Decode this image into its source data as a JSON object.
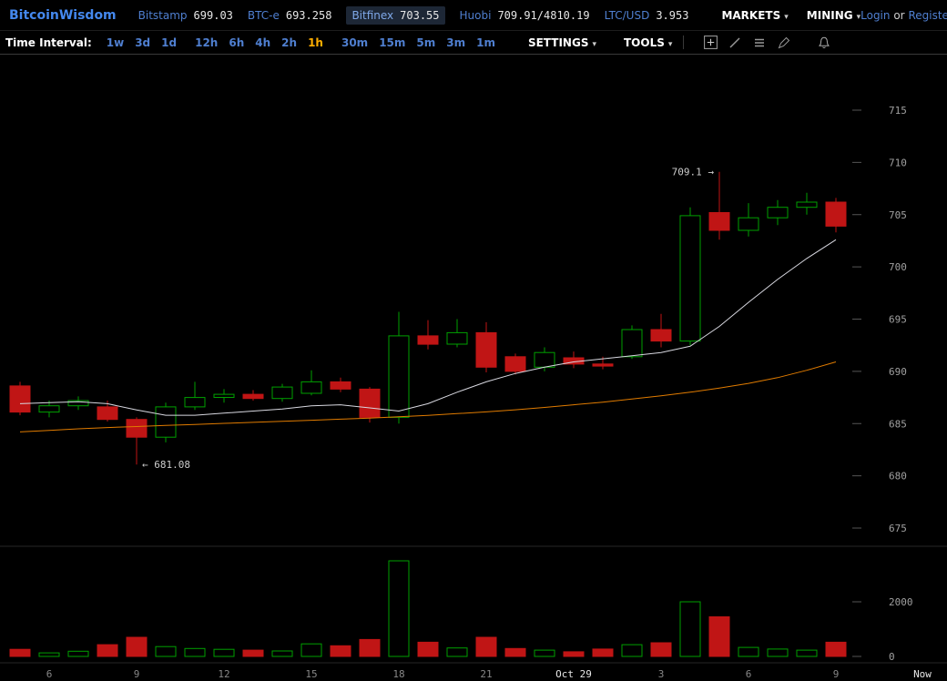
{
  "header": {
    "logo": "BitcoinWisdom",
    "markets": [
      {
        "name": "Bitstamp",
        "price": "699.03",
        "selected": false
      },
      {
        "name": "BTC-e",
        "price": "693.258",
        "selected": false
      },
      {
        "name": "Bitfinex",
        "price": "703.55",
        "selected": true
      },
      {
        "name": "Huobi",
        "price": "709.91/4810.19",
        "selected": false
      },
      {
        "name": "LTC/USD",
        "price": "3.953",
        "selected": false
      }
    ],
    "menus": [
      {
        "label": "MARKETS"
      },
      {
        "label": "MINING"
      }
    ],
    "auth": {
      "login": "Login",
      "or": "or",
      "register": "Register"
    }
  },
  "glyphs": {
    "caret": "▾"
  },
  "toolbar": {
    "time_interval_label": "Time Interval:",
    "intervals": [
      {
        "label": "1w",
        "selected": false
      },
      {
        "label": "3d",
        "selected": false
      },
      {
        "label": "1d",
        "selected": false
      },
      {
        "label": "12h",
        "selected": false
      },
      {
        "label": "6h",
        "selected": false
      },
      {
        "label": "4h",
        "selected": false
      },
      {
        "label": "2h",
        "selected": false
      },
      {
        "label": "1h",
        "selected": true
      },
      {
        "label": "30m",
        "selected": false
      },
      {
        "label": "15m",
        "selected": false
      },
      {
        "label": "5m",
        "selected": false
      },
      {
        "label": "3m",
        "selected": false
      },
      {
        "label": "1m",
        "selected": false
      }
    ],
    "menus": [
      {
        "label": "SETTINGS"
      },
      {
        "label": "TOOLS"
      }
    ],
    "icon_buttons": [
      "crosshair-icon",
      "trendline-icon",
      "indicators-icon",
      "brush-icon",
      "bell-icon"
    ]
  },
  "chart_data": {
    "type": "candlestick+volume",
    "market": "Bitfinex BTC/USD",
    "interval": "1h",
    "y_axis": {
      "ticks": [
        675,
        680,
        685,
        690,
        695,
        700,
        705,
        710,
        715
      ],
      "range": [
        672,
        719
      ]
    },
    "volume_axis": {
      "ticks": [
        0,
        2000
      ]
    },
    "x_axis_labels": [
      {
        "index": 1,
        "label": "6"
      },
      {
        "index": 4,
        "label": "9"
      },
      {
        "index": 7,
        "label": "12"
      },
      {
        "index": 10,
        "label": "15"
      },
      {
        "index": 13,
        "label": "18"
      },
      {
        "index": 16,
        "label": "21"
      },
      {
        "index": 19,
        "label": "Oct 29",
        "bright": true
      },
      {
        "index": 22,
        "label": "3"
      },
      {
        "index": 25,
        "label": "6"
      },
      {
        "index": 28,
        "label": "9"
      },
      {
        "label": "Now",
        "bright": true
      }
    ],
    "annotations": [
      {
        "text": "709.1 →",
        "candle_index": 24,
        "price": 709.1,
        "side": "left"
      },
      {
        "text": "← 681.08",
        "candle_index": 4,
        "price": 681.08,
        "side": "right"
      }
    ],
    "candles_format": [
      "open",
      "high",
      "low",
      "close",
      "volume"
    ],
    "candles": [
      [
        688.6,
        689.0,
        685.8,
        686.1,
        260
      ],
      [
        686.1,
        687.2,
        685.6,
        686.7,
        130
      ],
      [
        686.7,
        687.6,
        686.3,
        687.2,
        190
      ],
      [
        686.6,
        687.2,
        685.2,
        685.4,
        430
      ],
      [
        685.4,
        685.6,
        681.08,
        683.7,
        700
      ],
      [
        683.7,
        687.0,
        683.2,
        686.6,
        360
      ],
      [
        686.6,
        689.0,
        686.3,
        687.5,
        290
      ],
      [
        687.5,
        688.3,
        687.0,
        687.8,
        260
      ],
      [
        687.8,
        688.2,
        687.2,
        687.4,
        230
      ],
      [
        687.4,
        688.8,
        687.1,
        688.5,
        200
      ],
      [
        687.9,
        690.1,
        687.7,
        689.0,
        460
      ],
      [
        689.0,
        689.4,
        688.0,
        688.3,
        390
      ],
      [
        688.3,
        688.5,
        685.1,
        685.6,
        620
      ],
      [
        685.6,
        695.7,
        685.0,
        693.4,
        3500
      ],
      [
        693.4,
        694.9,
        692.1,
        692.6,
        520
      ],
      [
        692.6,
        695.0,
        692.3,
        693.7,
        310
      ],
      [
        693.7,
        694.7,
        689.9,
        690.4,
        700
      ],
      [
        691.4,
        691.7,
        689.7,
        690.0,
        290
      ],
      [
        690.4,
        692.3,
        690.0,
        691.8,
        230
      ],
      [
        691.3,
        691.9,
        690.3,
        690.7,
        170
      ],
      [
        690.7,
        691.4,
        690.2,
        690.5,
        270
      ],
      [
        691.4,
        694.4,
        691.2,
        694.0,
        430
      ],
      [
        694.0,
        695.5,
        692.3,
        692.9,
        500
      ],
      [
        692.9,
        705.7,
        692.5,
        704.9,
        2000
      ],
      [
        705.2,
        709.1,
        702.6,
        703.5,
        1450
      ],
      [
        703.5,
        706.1,
        702.9,
        704.7,
        330
      ],
      [
        704.7,
        706.4,
        704.0,
        705.7,
        270
      ],
      [
        705.7,
        707.1,
        705.0,
        706.2,
        230
      ],
      [
        706.2,
        706.6,
        703.3,
        703.9,
        520
      ]
    ],
    "ma_fast": [
      686.9,
      687.0,
      687.1,
      686.9,
      686.3,
      685.8,
      685.8,
      686.0,
      686.2,
      686.4,
      686.7,
      686.8,
      686.5,
      686.2,
      686.9,
      688.0,
      689.0,
      689.8,
      690.4,
      690.9,
      691.2,
      691.5,
      691.8,
      692.4,
      694.3,
      696.6,
      698.8,
      700.8,
      702.6
    ],
    "ma_slow": [
      684.2,
      684.35,
      684.5,
      684.62,
      684.72,
      684.82,
      684.92,
      685.02,
      685.12,
      685.22,
      685.32,
      685.42,
      685.52,
      685.65,
      685.78,
      685.95,
      686.12,
      686.32,
      686.55,
      686.8,
      687.05,
      687.35,
      687.65,
      688.0,
      688.4,
      688.85,
      689.4,
      690.1,
      690.9
    ],
    "colors": {
      "up": "#00a000",
      "down": "#c01515",
      "ma_fast": "#d8d8e0",
      "ma_slow": "#e07b00",
      "axis_text": "#a0a0a0",
      "time_text": "#888888",
      "time_text_bright": "#e8e8e8",
      "annotation_text": "#cccccc",
      "tick": "#555555",
      "separator": "#262626"
    }
  }
}
